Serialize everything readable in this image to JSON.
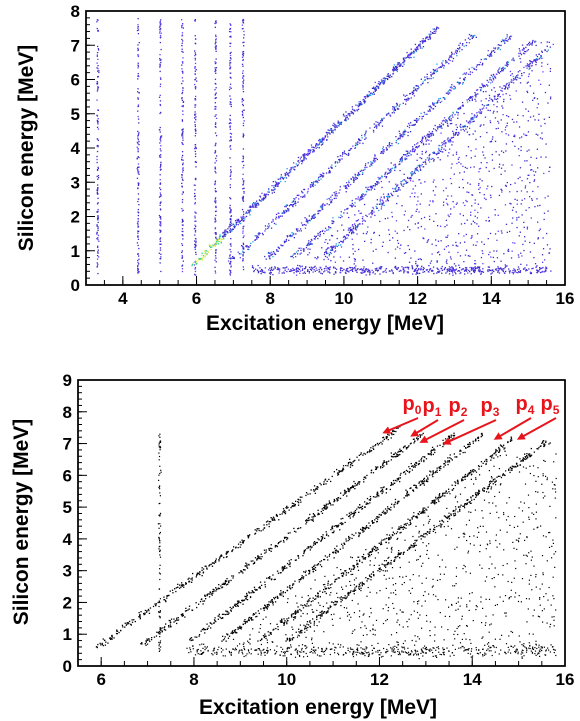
{
  "chart_data": [
    {
      "type": "heatmap",
      "title": "",
      "xlabel": "Excitation energy [MeV]",
      "ylabel": "Silicon energy [MeV]",
      "xlim": [
        3.0,
        16.0
      ],
      "ylim": [
        0,
        8
      ],
      "xticks": [
        "4",
        "6",
        "8",
        "10",
        "12",
        "14",
        "16"
      ],
      "yticks": [
        "0",
        "1",
        "2",
        "3",
        "4",
        "5",
        "6",
        "7",
        "8"
      ],
      "colormap": [
        "#3b2cc9",
        "#6a3cff",
        "#1f9fe0",
        "#33d08a",
        "#d8e83a"
      ],
      "vertical_lines_MeV": [
        3.3,
        4.4,
        5.0,
        5.6,
        5.95,
        6.5,
        6.9,
        7.25
      ],
      "diagonal_bands": [
        {
          "x": [
            5.9,
            12.5
          ],
          "y": [
            0.6,
            7.5
          ]
        },
        {
          "x": [
            6.9,
            13.5
          ],
          "y": [
            0.7,
            7.3
          ]
        },
        {
          "x": [
            7.9,
            14.5
          ],
          "y": [
            0.8,
            7.3
          ]
        },
        {
          "x": [
            8.6,
            15.2
          ],
          "y": [
            0.8,
            7.2
          ]
        },
        {
          "x": [
            9.4,
            15.6
          ],
          "y": [
            0.8,
            7.0
          ]
        }
      ]
    },
    {
      "type": "scatter",
      "title": "",
      "xlabel": "Excitation energy [MeV]",
      "ylabel": "Silicon energy [MeV]",
      "xlim": [
        5.5,
        16.0
      ],
      "ylim": [
        0,
        9
      ],
      "xticks": [
        "6",
        "8",
        "10",
        "12",
        "14",
        "16"
      ],
      "yticks": [
        "0",
        "1",
        "2",
        "3",
        "4",
        "5",
        "6",
        "7",
        "8",
        "9"
      ],
      "marker_color": "#000000",
      "diagonal_bands": [
        {
          "name": "p0",
          "x": [
            5.9,
            12.4
          ],
          "y": [
            0.6,
            7.5
          ]
        },
        {
          "name": "p1",
          "x": [
            6.9,
            13.0
          ],
          "y": [
            0.7,
            7.4
          ]
        },
        {
          "name": "p2",
          "x": [
            7.9,
            13.6
          ],
          "y": [
            0.8,
            7.3
          ]
        },
        {
          "name": "p3",
          "x": [
            8.6,
            14.2
          ],
          "y": [
            0.8,
            7.3
          ]
        },
        {
          "name": "p4",
          "x": [
            9.4,
            14.9
          ],
          "y": [
            0.8,
            7.2
          ]
        },
        {
          "name": "p5",
          "x": [
            10.0,
            15.6
          ],
          "y": [
            0.8,
            7.1
          ]
        }
      ],
      "annotations": [
        {
          "label": "p",
          "sub": "0",
          "arrow_to": [
            12.1,
            7.35
          ]
        },
        {
          "label": "p",
          "sub": "1",
          "arrow_to": [
            12.7,
            7.25
          ]
        },
        {
          "label": "p",
          "sub": "2",
          "arrow_to": [
            12.9,
            7.05
          ]
        },
        {
          "label": "p",
          "sub": "3",
          "arrow_to": [
            13.4,
            7.0
          ]
        },
        {
          "label": "p",
          "sub": "4",
          "arrow_to": [
            14.5,
            7.15
          ]
        },
        {
          "label": "p",
          "sub": "5",
          "arrow_to": [
            15.0,
            7.15
          ]
        }
      ],
      "annotation_color": "#e8141c"
    }
  ]
}
